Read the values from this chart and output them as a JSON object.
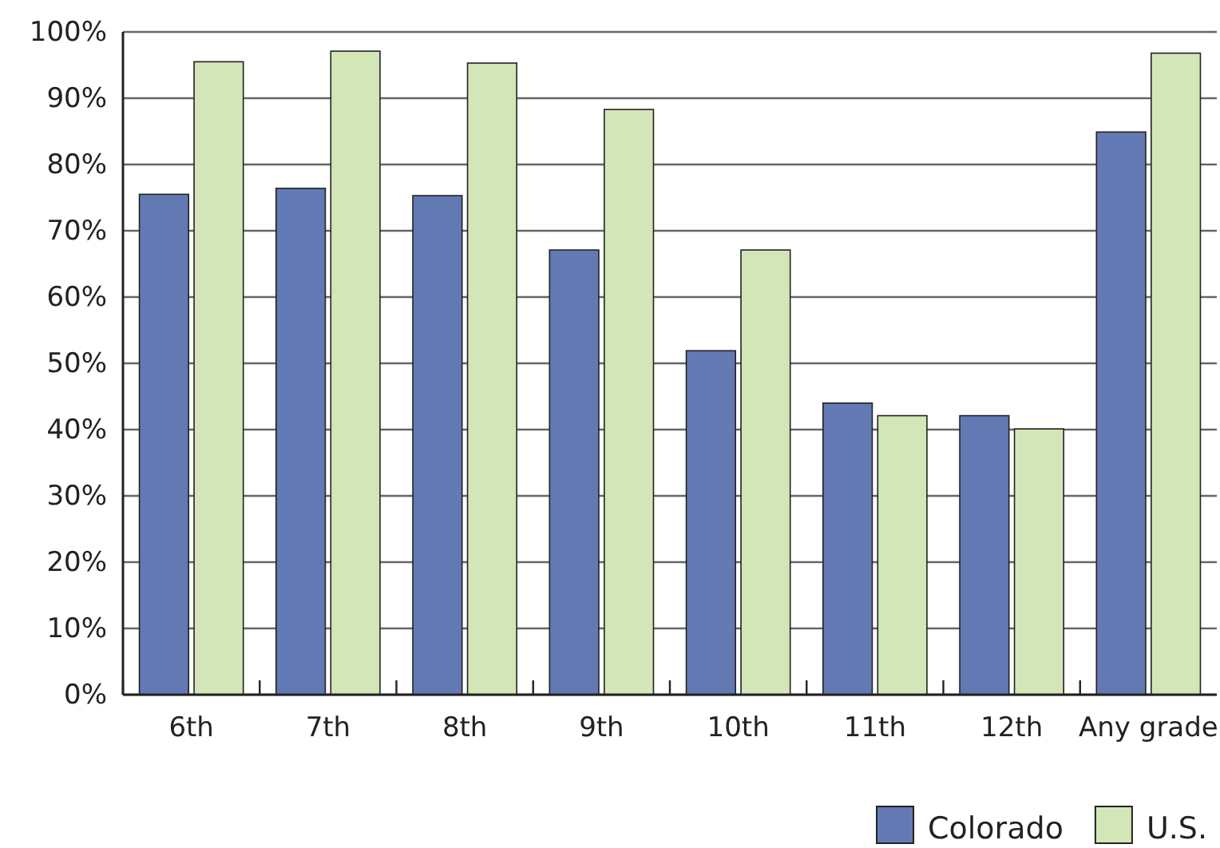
{
  "chart_data": {
    "type": "bar",
    "categories": [
      "6th",
      "7th",
      "8th",
      "9th",
      "10th",
      "11th",
      "12th",
      "Any grade"
    ],
    "series": [
      {
        "name": "Colorado",
        "color": "#6379b3",
        "values": [
          75.5,
          76.4,
          75.3,
          67.1,
          51.9,
          44.0,
          42.1,
          84.9
        ]
      },
      {
        "name": "U.S.",
        "color": "#d2e6b7",
        "values": [
          95.5,
          97.1,
          95.3,
          88.3,
          67.1,
          42.1,
          40.1,
          96.8
        ]
      }
    ],
    "ylim": [
      0,
      100
    ],
    "yticks": [
      {
        "value": 0,
        "label": "0%"
      },
      {
        "value": 10,
        "label": "10%"
      },
      {
        "value": 20,
        "label": "20%"
      },
      {
        "value": 30,
        "label": "30%"
      },
      {
        "value": 40,
        "label": "40%"
      },
      {
        "value": 50,
        "label": "50%"
      },
      {
        "value": 60,
        "label": "60%"
      },
      {
        "value": 70,
        "label": "70%"
      },
      {
        "value": 80,
        "label": "80%"
      },
      {
        "value": 90,
        "label": "90%"
      },
      {
        "value": 100,
        "label": "100%"
      }
    ],
    "grid": "y",
    "legend": "bottom right"
  }
}
